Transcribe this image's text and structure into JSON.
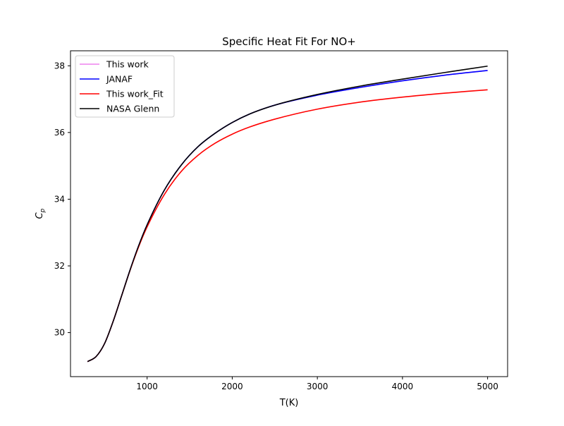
{
  "chart_data": {
    "type": "line",
    "title": "Specific Heat Fit For NO+",
    "xlabel": "T(K)",
    "ylabel": "C",
    "ylabel_sub": "p",
    "xlim": [
      100,
      5235
    ],
    "ylim": [
      28.68,
      38.45
    ],
    "xticks": [
      1000,
      2000,
      3000,
      4000,
      5000
    ],
    "yticks": [
      30,
      32,
      34,
      36,
      38
    ],
    "grid": false,
    "legend_position": "top-left",
    "series": [
      {
        "name": "This work",
        "color": "#ee82ee",
        "x": [
          300,
          400,
          500,
          600,
          700,
          800,
          900,
          1000,
          1200,
          1400,
          1600,
          1800,
          2000,
          2200,
          2500,
          3000,
          3500,
          4000,
          4500,
          5000
        ],
        "y": [
          29.13,
          29.28,
          29.67,
          30.33,
          31.1,
          31.88,
          32.6,
          33.23,
          34.26,
          35.02,
          35.58,
          35.98,
          36.3,
          36.55,
          36.82,
          37.12,
          37.35,
          37.55,
          37.72,
          37.86
        ]
      },
      {
        "name": "JANAF",
        "color": "#0000ff",
        "x": [
          300,
          400,
          500,
          600,
          700,
          800,
          900,
          1000,
          1200,
          1400,
          1600,
          1800,
          2000,
          2200,
          2500,
          3000,
          3500,
          4000,
          4500,
          5000
        ],
        "y": [
          29.13,
          29.28,
          29.67,
          30.33,
          31.1,
          31.88,
          32.6,
          33.23,
          34.26,
          35.02,
          35.58,
          35.98,
          36.3,
          36.55,
          36.82,
          37.12,
          37.35,
          37.55,
          37.72,
          37.86
        ]
      },
      {
        "name": "This work_Fit",
        "color": "#ff0000",
        "x": [
          300,
          400,
          500,
          600,
          700,
          800,
          900,
          1000,
          1200,
          1400,
          1600,
          1800,
          2000,
          2200,
          2500,
          3000,
          3500,
          4000,
          4500,
          5000
        ],
        "y": [
          29.13,
          29.28,
          29.67,
          30.33,
          31.1,
          31.87,
          32.57,
          33.17,
          34.13,
          34.83,
          35.32,
          35.68,
          35.95,
          36.16,
          36.4,
          36.7,
          36.91,
          37.06,
          37.18,
          37.28
        ]
      },
      {
        "name": "NASA Glenn",
        "color": "#000000",
        "x": [
          300,
          400,
          500,
          600,
          700,
          800,
          900,
          1000,
          1200,
          1400,
          1600,
          1800,
          2000,
          2200,
          2500,
          3000,
          3500,
          4000,
          4500,
          5000
        ],
        "y": [
          29.13,
          29.28,
          29.67,
          30.33,
          31.1,
          31.88,
          32.6,
          33.23,
          34.26,
          35.02,
          35.58,
          35.98,
          36.3,
          36.55,
          36.82,
          37.14,
          37.39,
          37.6,
          37.8,
          37.99
        ]
      }
    ]
  }
}
